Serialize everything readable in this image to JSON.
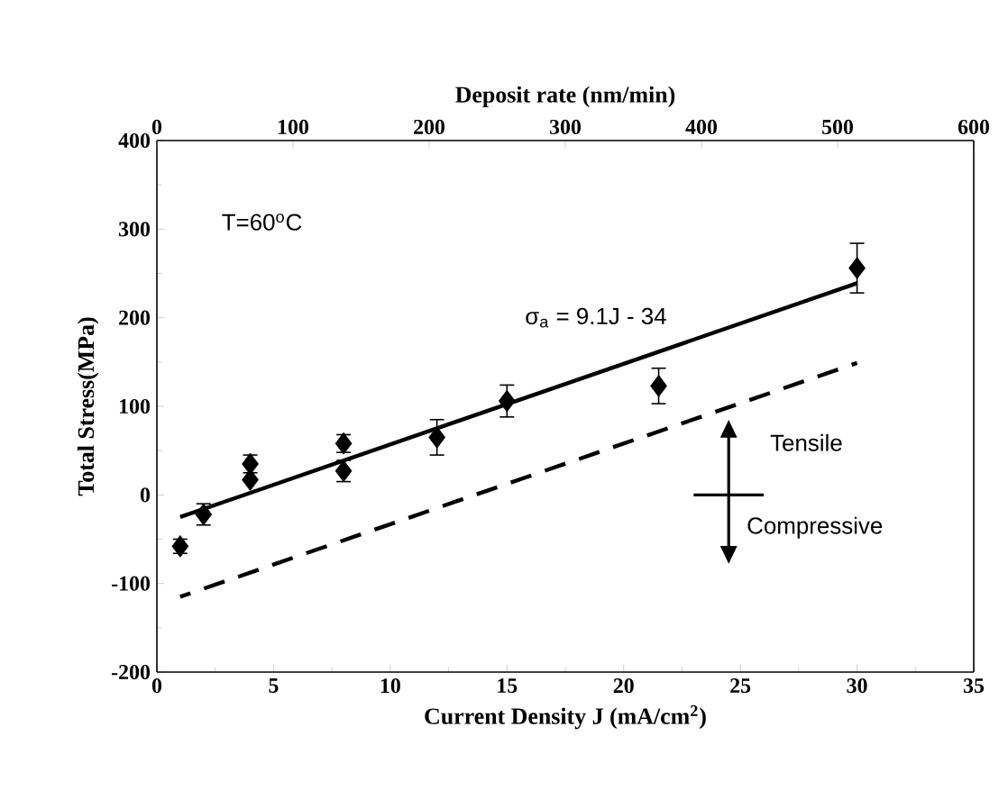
{
  "chart_data": {
    "type": "scatter",
    "xlabel": "Current Density J (mA/cm$^{2}$)",
    "ylabel": "Total Stress(MPa)",
    "x2label": "Deposit rate (nm/min)",
    "xlim": [
      0,
      35
    ],
    "xticks": [
      0,
      5,
      10,
      15,
      20,
      25,
      30,
      35
    ],
    "ylim": [
      -200,
      400
    ],
    "yticks": [
      -200,
      -100,
      0,
      100,
      200,
      300,
      400
    ],
    "x2lim": [
      0,
      600
    ],
    "x2ticks": [
      0,
      100,
      200,
      300,
      400,
      500,
      600
    ],
    "series": [
      {
        "color": "#000000",
        "marker": "diamond",
        "x": [
          1,
          2,
          4,
          4,
          8,
          8,
          12,
          15,
          21.5,
          30
        ],
        "values": [
          -58,
          -22,
          35,
          17,
          58,
          27,
          65,
          106,
          123,
          256
        ],
        "errors": [
          8,
          12,
          10,
          null,
          10,
          12,
          20,
          18,
          20,
          28
        ]
      },
      {
        "type": "line",
        "color": "#000000",
        "line_style": "solid",
        "x": [
          1,
          30
        ],
        "values": [
          -25,
          239
        ]
      },
      {
        "type": "line",
        "color": "#000000",
        "line_style": "dashed",
        "x": [
          1,
          30
        ],
        "values": [
          -115,
          149
        ]
      }
    ],
    "annotations": [
      "T=60$^{o}$C",
      "σ$_{a}$ = 9.1J - 34",
      "Tensile",
      "Compressive"
    ]
  }
}
